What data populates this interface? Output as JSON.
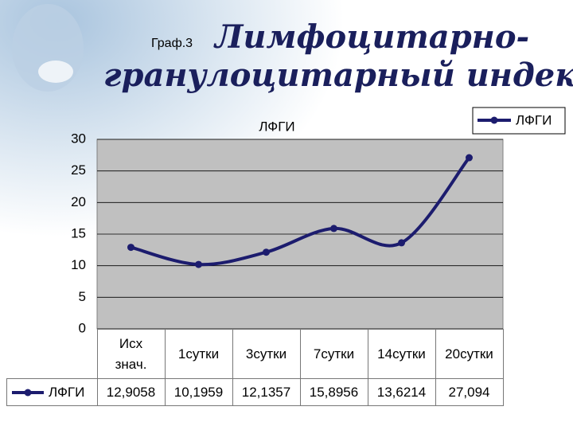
{
  "header": {
    "label": "Граф.3",
    "title_lines": [
      "Лимфоцитарно-",
      "гранулоцитарный индекс"
    ]
  },
  "chart_data": {
    "type": "line",
    "title": "ЛФГИ",
    "categories": [
      "Исх знач.",
      "1сутки",
      "3сутки",
      "7сутки",
      "14сутки",
      "20сутки"
    ],
    "series": [
      {
        "name": "ЛФГИ",
        "color": "#1c1c6e",
        "values": [
          12.9058,
          10.1959,
          12.1357,
          15.8956,
          13.6214,
          27.094
        ],
        "value_labels": [
          "12,9058",
          "10,1959",
          "12,1357",
          "15,8956",
          "13,6214",
          "27,094"
        ]
      }
    ],
    "ylim": [
      0,
      30
    ],
    "yticks": [
      0,
      5,
      10,
      15,
      20,
      25,
      30
    ],
    "grid": true,
    "legend": "top-right"
  }
}
